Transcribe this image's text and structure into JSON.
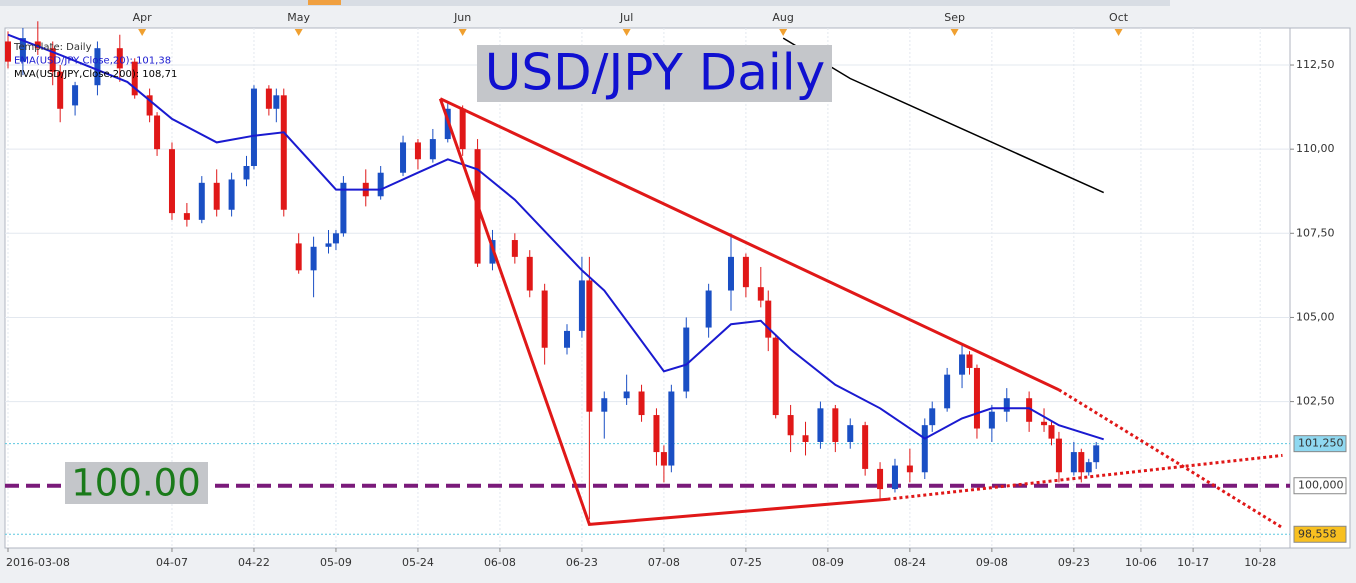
{
  "chart_data": {
    "type": "candlestick",
    "title": "USD/JPY Daily",
    "legend_texts": [
      "Template: Daily",
      "EMA(USD/JPY,Close,20): 101,38",
      "MVA(USD/JPY,Close,200): 108,71"
    ],
    "annotation": "100.00",
    "up_color": "#1a4fc4",
    "down_color": "#e01818",
    "xlim": [
      "2016-03-08",
      "2016-11-03"
    ],
    "ylim": [
      98.15,
      113.6
    ],
    "grid": true,
    "yticks": [
      {
        "value": 102.5,
        "label": "102,50"
      },
      {
        "value": 105,
        "label": "105,00"
      },
      {
        "value": 107.5,
        "label": "107,50"
      },
      {
        "value": 110,
        "label": "110,00"
      },
      {
        "value": 112.5,
        "label": "112,50"
      }
    ],
    "xticks": [
      {
        "value": "2016-03-08",
        "label": "2016-03-08"
      },
      {
        "value": "2016-04-07",
        "label": "04-07"
      },
      {
        "value": "2016-04-22",
        "label": "04-22"
      },
      {
        "value": "2016-05-09",
        "label": "05-09"
      },
      {
        "value": "2016-05-24",
        "label": "05-24"
      },
      {
        "value": "2016-06-08",
        "label": "06-08"
      },
      {
        "value": "2016-06-23",
        "label": "06-23"
      },
      {
        "value": "2016-07-08",
        "label": "07-08"
      },
      {
        "value": "2016-07-25",
        "label": "07-25"
      },
      {
        "value": "2016-08-09",
        "label": "08-09"
      },
      {
        "value": "2016-08-24",
        "label": "08-24"
      },
      {
        "value": "2016-09-08",
        "label": "09-08"
      },
      {
        "value": "2016-09-23",
        "label": "09-23"
      },
      {
        "value": "2016-10-06",
        "label": "10-06"
      },
      {
        "value": "2016-10-17",
        "label": "10-17"
      },
      {
        "value": "2016-10-28",
        "label": "10-28"
      }
    ],
    "month_ticks": [
      {
        "value": "2016-04-01",
        "label": "Apr"
      },
      {
        "value": "2016-05-02",
        "label": "May"
      },
      {
        "value": "2016-06-01",
        "label": "Jun"
      },
      {
        "value": "2016-07-01",
        "label": "Jul"
      },
      {
        "value": "2016-08-01",
        "label": "Aug"
      },
      {
        "value": "2016-09-01",
        "label": "Sep"
      },
      {
        "value": "2016-10-03",
        "label": "Oct"
      }
    ],
    "x": [
      "2016-03-08",
      "2016-03-10",
      "2016-03-14",
      "2016-03-16",
      "2016-03-17",
      "2016-03-21",
      "2016-03-24",
      "2016-03-29",
      "2016-03-31",
      "2016-04-04",
      "2016-04-05",
      "2016-04-07",
      "2016-04-11",
      "2016-04-13",
      "2016-04-15",
      "2016-04-19",
      "2016-04-21",
      "2016-04-22",
      "2016-04-26",
      "2016-04-27",
      "2016-04-28",
      "2016-05-02",
      "2016-05-04",
      "2016-05-06",
      "2016-05-09",
      "2016-05-10",
      "2016-05-13",
      "2016-05-17",
      "2016-05-20",
      "2016-05-24",
      "2016-05-26",
      "2016-05-30",
      "2016-06-01",
      "2016-06-03",
      "2016-06-07",
      "2016-06-10",
      "2016-06-14",
      "2016-06-16",
      "2016-06-21",
      "2016-06-23",
      "2016-06-24",
      "2016-06-28",
      "2016-07-01",
      "2016-07-05",
      "2016-07-07",
      "2016-07-08",
      "2016-07-11",
      "2016-07-13",
      "2016-07-18",
      "2016-07-21",
      "2016-07-25",
      "2016-07-27",
      "2016-07-28",
      "2016-07-29",
      "2016-08-02",
      "2016-08-04",
      "2016-08-08",
      "2016-08-10",
      "2016-08-12",
      "2016-08-16",
      "2016-08-18",
      "2016-08-22",
      "2016-08-24",
      "2016-08-26",
      "2016-08-29",
      "2016-08-31",
      "2016-09-02",
      "2016-09-05",
      "2016-09-06",
      "2016-09-08",
      "2016-09-12",
      "2016-09-15",
      "2016-09-19",
      "2016-09-20",
      "2016-09-21",
      "2016-09-23",
      "2016-09-26",
      "2016-09-27",
      "2016-09-28"
    ],
    "open": [
      113.2,
      112.6,
      113.2,
      113.0,
      112.3,
      111.3,
      111.9,
      113.0,
      112.6,
      111.6,
      111.0,
      110.0,
      108.1,
      107.9,
      109.0,
      108.2,
      109.1,
      109.5,
      111.8,
      111.2,
      111.6,
      107.2,
      106.4,
      107.1,
      107.2,
      107.5,
      109.0,
      108.6,
      109.3,
      110.2,
      109.7,
      110.3,
      111.2,
      110.0,
      106.6,
      107.3,
      106.8,
      105.8,
      104.1,
      104.6,
      106.1,
      102.2,
      102.6,
      102.8,
      102.1,
      101.0,
      100.6,
      102.8,
      104.7,
      105.8,
      106.8,
      105.9,
      105.5,
      104.4,
      102.1,
      101.5,
      101.3,
      102.3,
      101.3,
      101.8,
      100.5,
      99.9,
      100.6,
      100.4,
      101.8,
      102.3,
      103.3,
      103.9,
      103.5,
      101.7,
      102.2,
      102.6,
      101.9,
      101.8,
      101.4,
      100.4,
      101.0,
      100.4,
      100.7
    ],
    "high": [
      113.5,
      113.6,
      113.8,
      113.2,
      112.5,
      112.0,
      113.2,
      113.4,
      112.7,
      111.8,
      111.1,
      110.2,
      108.4,
      109.2,
      109.4,
      109.3,
      109.8,
      111.9,
      111.9,
      111.8,
      111.8,
      107.5,
      107.4,
      107.6,
      107.6,
      109.2,
      109.4,
      109.5,
      110.4,
      110.3,
      110.6,
      111.4,
      111.3,
      110.3,
      107.6,
      107.5,
      107.0,
      106.0,
      104.8,
      106.8,
      106.8,
      102.8,
      103.3,
      103.0,
      102.3,
      101.2,
      103.0,
      105.0,
      106.0,
      107.5,
      106.9,
      106.5,
      105.8,
      104.5,
      102.4,
      101.9,
      102.5,
      102.4,
      102.0,
      101.9,
      100.7,
      100.8,
      101.1,
      102.0,
      102.5,
      103.5,
      104.2,
      104.0,
      103.6,
      102.4,
      102.9,
      102.8,
      102.3,
      101.9,
      101.6,
      101.3,
      101.1,
      100.8,
      101.3
    ],
    "low": [
      112.4,
      112.2,
      112.8,
      111.9,
      110.8,
      111.0,
      111.6,
      112.0,
      111.5,
      110.8,
      109.8,
      107.9,
      107.7,
      107.8,
      108.0,
      108.0,
      108.9,
      109.4,
      111.0,
      110.8,
      108.0,
      106.3,
      105.6,
      106.9,
      107.0,
      107.4,
      108.3,
      108.5,
      109.2,
      109.4,
      109.6,
      110.2,
      109.8,
      106.5,
      106.4,
      106.6,
      105.6,
      103.6,
      103.9,
      104.4,
      99.0,
      101.4,
      102.4,
      101.9,
      100.6,
      100.1,
      100.4,
      102.6,
      104.4,
      105.2,
      105.6,
      105.3,
      104.0,
      102.0,
      101.0,
      100.9,
      101.1,
      101.0,
      101.1,
      100.3,
      99.6,
      99.8,
      100.1,
      100.2,
      101.6,
      102.2,
      102.9,
      103.3,
      101.4,
      101.3,
      101.9,
      101.6,
      101.6,
      101.2,
      100.1,
      100.3,
      100.1,
      100.3,
      100.5
    ],
    "close": [
      112.6,
      113.3,
      113.0,
      112.3,
      111.2,
      111.9,
      113.0,
      112.4,
      111.6,
      111.0,
      110.0,
      108.1,
      107.9,
      109.0,
      108.2,
      109.1,
      109.5,
      111.8,
      111.2,
      111.6,
      108.2,
      106.4,
      107.1,
      107.2,
      107.5,
      109.0,
      108.6,
      109.3,
      110.2,
      109.7,
      110.3,
      111.2,
      110.0,
      106.6,
      107.3,
      106.8,
      105.8,
      104.1,
      104.6,
      106.1,
      102.2,
      102.6,
      102.8,
      102.1,
      101.0,
      100.6,
      102.8,
      104.7,
      105.8,
      106.8,
      105.9,
      105.5,
      104.4,
      102.1,
      101.5,
      101.3,
      102.3,
      101.3,
      101.8,
      100.5,
      99.9,
      100.6,
      100.4,
      101.8,
      102.3,
      103.3,
      103.9,
      103.5,
      101.7,
      102.2,
      102.6,
      101.9,
      101.8,
      101.4,
      100.4,
      101.0,
      100.4,
      100.7,
      101.2
    ],
    "overlays": [
      {
        "color": "#1a1ad0",
        "x": [
          "2016-03-08",
          "2016-03-17",
          "2016-03-30",
          "2016-04-07",
          "2016-04-15",
          "2016-04-22",
          "2016-04-28",
          "2016-05-09",
          "2016-05-17",
          "2016-05-24",
          "2016-05-30",
          "2016-06-03",
          "2016-06-10",
          "2016-06-23",
          "2016-06-28",
          "2016-07-08",
          "2016-07-13",
          "2016-07-21",
          "2016-07-27",
          "2016-08-02",
          "2016-08-10",
          "2016-08-18",
          "2016-08-26",
          "2016-09-02",
          "2016-09-08",
          "2016-09-15",
          "2016-09-21",
          "2016-09-29"
        ],
        "values": [
          113.4,
          112.8,
          112.0,
          110.9,
          110.2,
          110.4,
          110.5,
          108.8,
          108.8,
          109.3,
          109.7,
          109.4,
          108.5,
          106.4,
          105.8,
          103.4,
          103.6,
          104.8,
          104.9,
          104.05,
          103.0,
          102.3,
          101.4,
          102.0,
          102.3,
          102.3,
          101.8,
          101.38
        ]
      },
      {
        "color": "#000000",
        "x": [
          "2016-08-01",
          "2016-08-12",
          "2016-09-29"
        ],
        "values": [
          113.3,
          112.1,
          108.71
        ]
      }
    ],
    "trendlines": [
      {
        "color": "#e01818",
        "style": "solid",
        "x": [
          "2016-05-27",
          "2016-09-21"
        ],
        "values": [
          111.5,
          102.85
        ]
      },
      {
        "color": "#e01818",
        "style": "solid",
        "x": [
          "2016-05-27",
          "2016-06-24",
          "2016-08-19"
        ],
        "values": [
          111.5,
          98.85,
          99.6
        ]
      },
      {
        "color": "#e01818",
        "style": "dotted",
        "x": [
          "2016-09-21",
          "2016-11-02"
        ],
        "values": [
          102.85,
          98.75
        ]
      },
      {
        "color": "#e01818",
        "style": "dotted",
        "x": [
          "2016-08-19",
          "2016-11-02"
        ],
        "values": [
          99.6,
          100.9
        ]
      }
    ],
    "price_tags": [
      {
        "value": 101.25,
        "label": "101,250",
        "color": "#8fd8f0",
        "line": "#5cc8e0"
      },
      {
        "value": 100,
        "label": "100,000",
        "color": "#ffffff",
        "line": "#7a1a7a"
      },
      {
        "value": 98.558,
        "label": "98,558",
        "color": "#f8c020",
        "line": "#5cc8e0"
      }
    ]
  }
}
